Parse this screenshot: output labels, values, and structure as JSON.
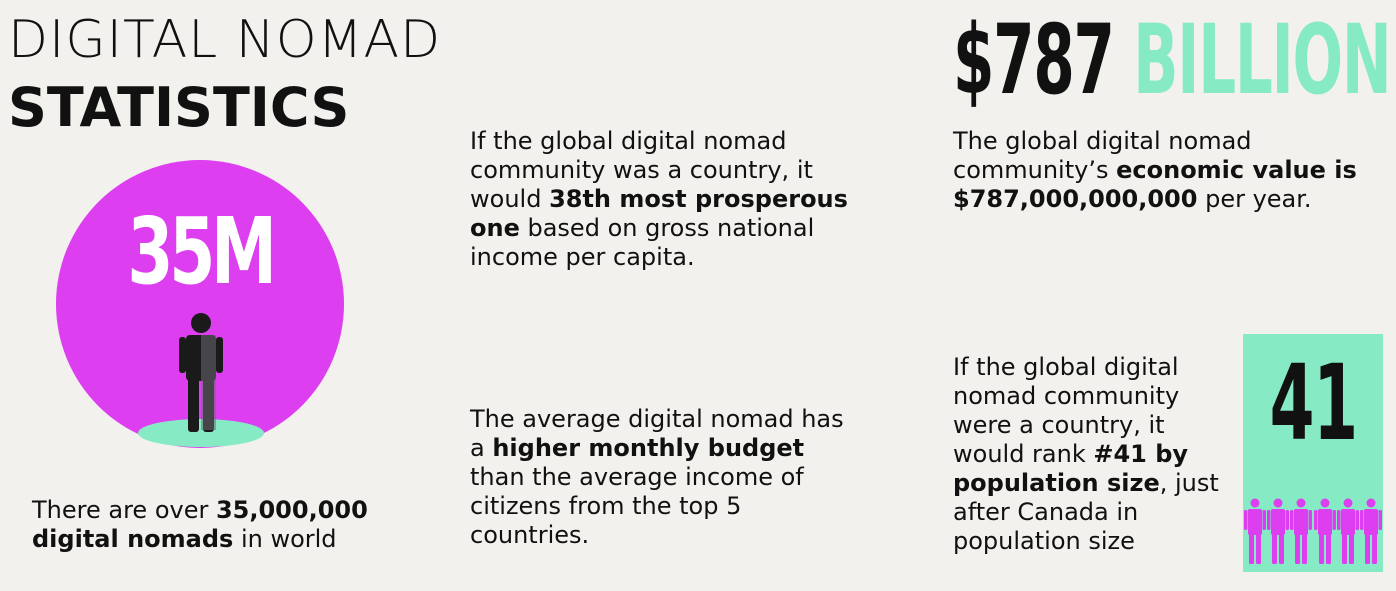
{
  "title": {
    "line1": "DIGITAL NOMAD",
    "line2": "STATISTICS"
  },
  "colors": {
    "magenta": "#dd3ef0",
    "teal": "#86eac5",
    "dark": "#111111",
    "background": "#f3f1ee"
  },
  "stat_35m": {
    "big_number": "35M",
    "text_pre": "There are over ",
    "text_bold": "35,000,000 digital nomads",
    "text_post": " in world"
  },
  "gni_block": {
    "text_pre": "If the global digital nomad community was a country, it would ",
    "text_bold": "38th most prosperous one",
    "text_post": " based on gross national income per capita."
  },
  "budget_block": {
    "text_pre": "The average digital nomad has a ",
    "text_bold": "higher monthly budget",
    "text_post": " than the average income of citizens from the top 5 countries."
  },
  "economic": {
    "headline_amount": "$787",
    "headline_unit": "BILLION",
    "text_pre": "The global digital nomad community’s ",
    "text_bold": "economic value is $787,000,000,000",
    "text_post": " per year."
  },
  "population": {
    "big_number": "41",
    "text_pre": "If the global digital nomad community were a country, it would rank ",
    "text_bold": "#41 by population size",
    "text_post": ", just after Canada in population size",
    "icon": "person-icon"
  }
}
